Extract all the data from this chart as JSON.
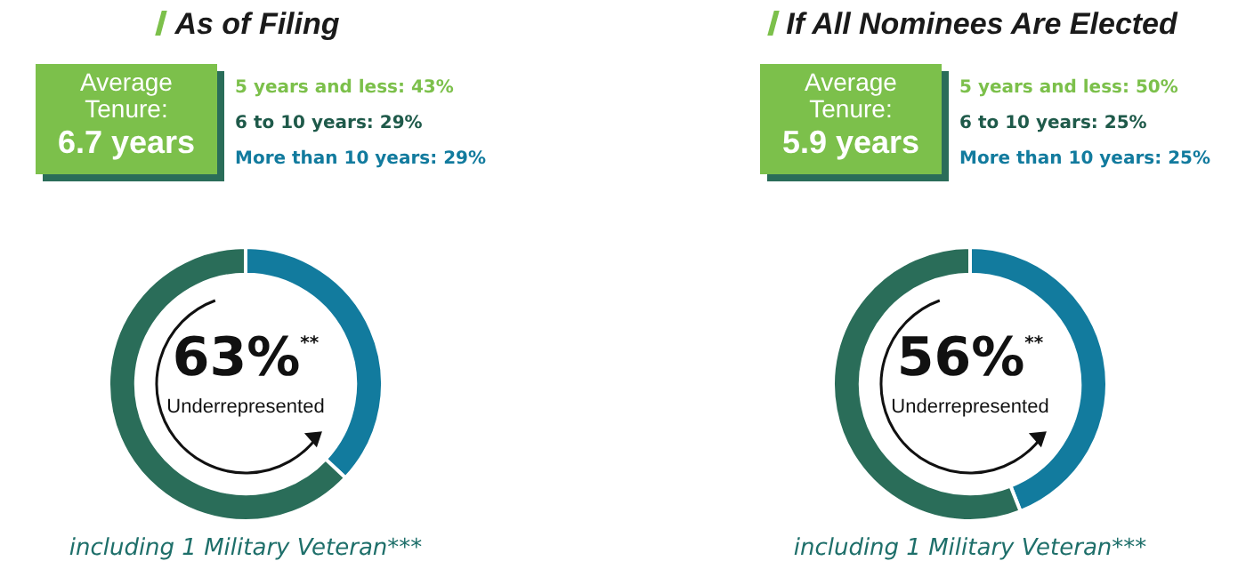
{
  "chart_data": [
    {
      "type": "donut",
      "title": "As of Filing",
      "categories": [
        null,
        null
      ],
      "values": [
        37,
        63
      ],
      "colors": [
        "#127b9e",
        "#2a6d59"
      ],
      "legend": false,
      "annotations": [
        "Average Tenure:",
        "6.7 years",
        "5 years and less: 43%",
        "6 to 10 years: 29%",
        "More than 10 years: 29%",
        "63%$^{**}$",
        "Underrepresented",
        "including 1 Military Veteran***"
      ]
    },
    {
      "type": "donut",
      "title": "If All Nominees Are Elected",
      "categories": [
        null,
        null
      ],
      "values": [
        44,
        56
      ],
      "colors": [
        "#127b9e",
        "#2a6d59"
      ],
      "legend": false,
      "annotations": [
        "Average Tenure:",
        "5.9 years",
        "5 years and less: 50%",
        "6 to 10 years: 25%",
        "More than 10 years: 25%",
        "56%$^{**}$",
        "Underrepresented",
        "including 1 Military Veteran***"
      ]
    }
  ]
}
